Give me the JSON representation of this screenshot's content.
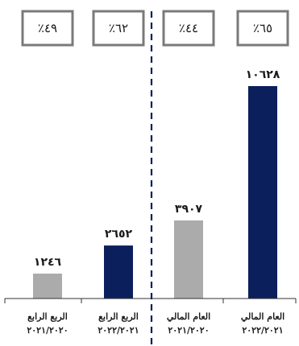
{
  "chart_data": {
    "type": "bar",
    "direction": "rtl",
    "categories": [
      {
        "line1": "العام المالي",
        "line2": "٢٠٢٢/٢٠٢١"
      },
      {
        "line1": "العام المالي",
        "line2": "٢٠٢١/٢٠٢٠"
      },
      {
        "line1": "الربع الرابع",
        "line2": "٢٠٢٢/٢٠٢١"
      },
      {
        "line1": "الربع الرابع",
        "line2": "٢٠٢١/٢٠٢٠"
      }
    ],
    "values": [
      10628,
      3907,
      2652,
      1246
    ],
    "value_labels": [
      "١٠٦٢٨",
      "٣٩٠٧",
      "٢٦٥٢",
      "١٢٤٦"
    ],
    "growth_labels": [
      "٪٦٥",
      "٪٤٤",
      "٪٦٢",
      "٪٤٩"
    ],
    "colors": [
      "#0b1f5c",
      "#ababab",
      "#0b1f5c",
      "#ababab"
    ],
    "grid": false,
    "legend": "none",
    "separator": "dashed vertical line between annual and quarterly groups"
  }
}
